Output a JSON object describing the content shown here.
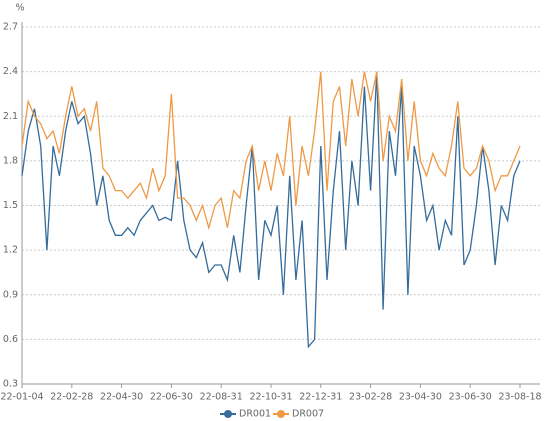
{
  "chart_data": {
    "type": "line",
    "y_label": "%",
    "categories": [
      "22-01-04",
      null,
      null,
      null,
      null,
      null,
      null,
      null,
      "22-02-28",
      null,
      null,
      null,
      null,
      null,
      null,
      null,
      "22-04-30",
      null,
      null,
      null,
      null,
      null,
      null,
      null,
      "22-06-30",
      null,
      null,
      null,
      null,
      null,
      null,
      null,
      "22-08-31",
      null,
      null,
      null,
      null,
      null,
      null,
      null,
      "22-10-31",
      null,
      null,
      null,
      null,
      null,
      null,
      null,
      "22-12-31",
      null,
      null,
      null,
      null,
      null,
      null,
      null,
      "23-02-28",
      null,
      null,
      null,
      null,
      null,
      null,
      null,
      "23-04-30",
      null,
      null,
      null,
      null,
      null,
      null,
      null,
      "23-06-30",
      null,
      null,
      null,
      null,
      null,
      null,
      null,
      "23-08-18"
    ],
    "series": [
      {
        "name": "DR001",
        "color": "#356c9b",
        "values": [
          1.7,
          2.0,
          2.15,
          1.9,
          1.2,
          1.9,
          1.7,
          2.0,
          2.2,
          2.05,
          2.1,
          1.85,
          1.5,
          1.7,
          1.4,
          1.3,
          1.3,
          1.35,
          1.3,
          1.4,
          1.45,
          1.5,
          1.4,
          1.42,
          1.4,
          1.8,
          1.4,
          1.2,
          1.15,
          1.25,
          1.05,
          1.1,
          1.1,
          1.0,
          1.3,
          1.05,
          1.5,
          1.9,
          1.0,
          1.4,
          1.3,
          1.5,
          0.9,
          1.7,
          1.0,
          1.4,
          0.55,
          0.6,
          1.9,
          1.0,
          1.6,
          2.0,
          1.2,
          1.8,
          1.5,
          2.3,
          1.6,
          2.4,
          0.8,
          2.0,
          1.7,
          2.3,
          0.9,
          1.9,
          1.7,
          1.4,
          1.5,
          1.2,
          1.4,
          1.3,
          2.1,
          1.1,
          1.2,
          1.5,
          1.9,
          1.6,
          1.1,
          1.5,
          1.4,
          1.7,
          1.8
        ]
      },
      {
        "name": "DR007",
        "color": "#ee9a45",
        "values": [
          1.9,
          2.2,
          2.1,
          2.05,
          1.95,
          2.0,
          1.85,
          2.1,
          2.3,
          2.1,
          2.15,
          2.0,
          2.2,
          1.75,
          1.7,
          1.6,
          1.6,
          1.55,
          1.6,
          1.65,
          1.55,
          1.75,
          1.6,
          1.7,
          2.25,
          1.55,
          1.55,
          1.5,
          1.4,
          1.5,
          1.35,
          1.5,
          1.55,
          1.35,
          1.6,
          1.55,
          1.8,
          1.9,
          1.6,
          1.8,
          1.6,
          1.85,
          1.7,
          2.1,
          1.5,
          1.9,
          1.7,
          2.0,
          2.4,
          1.6,
          2.2,
          2.3,
          1.9,
          2.35,
          2.1,
          2.4,
          2.2,
          2.4,
          1.8,
          2.1,
          2.0,
          2.35,
          1.8,
          2.2,
          1.8,
          1.7,
          1.85,
          1.75,
          1.7,
          1.9,
          2.2,
          1.75,
          1.7,
          1.75,
          1.9,
          1.8,
          1.6,
          1.7,
          1.7,
          1.8,
          1.9
        ]
      }
    ],
    "ylim": [
      0.3,
      2.7
    ],
    "yticks": [
      0.3,
      0.6,
      0.9,
      1.2,
      1.5,
      1.8,
      2.1,
      2.4,
      2.7
    ],
    "grid": true,
    "legend": "bottom"
  }
}
